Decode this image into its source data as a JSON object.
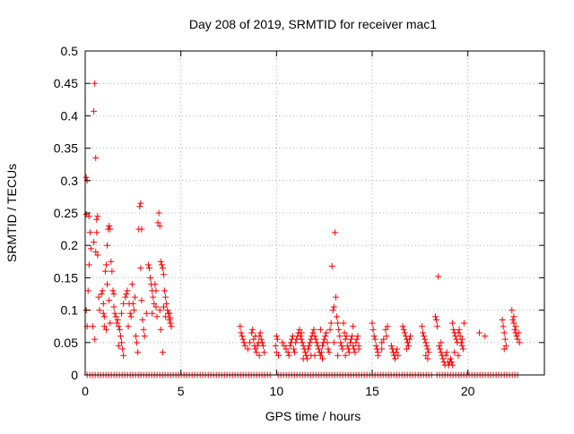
{
  "chart_data": {
    "type": "scatter",
    "title": "Day 208 of 2019, SRMTID for receiver mac1",
    "xlabel": "GPS time / hours",
    "ylabel": "SRMTID / TECUs",
    "xlim": [
      0,
      24
    ],
    "ylim": [
      0,
      0.5
    ],
    "xticks": [
      0,
      5,
      10,
      15,
      20
    ],
    "yticks": [
      0,
      0.05,
      0.1,
      0.15,
      0.2,
      0.25,
      0.3,
      0.35,
      0.4,
      0.45,
      0.5
    ],
    "ytick_labels": [
      "0",
      "0.05",
      "0.1",
      "0.15",
      "0.2",
      "0.25",
      "0.3",
      "0.35",
      "0.4",
      "0.45",
      "0.5"
    ],
    "grid": true,
    "marker": "+",
    "series_color": "#ff0000",
    "zero_baseline": {
      "x_start": 0.1,
      "x_end": 22.7,
      "value": 0,
      "gaps": [
        [
          9.8,
          10.0
        ],
        [
          18.1,
          18.3
        ]
      ]
    },
    "points": [
      [
        0.05,
        0.305
      ],
      [
        0.1,
        0.3
      ],
      [
        0.05,
        0.248
      ],
      [
        0.2,
        0.245
      ],
      [
        0.15,
        0.13
      ],
      [
        0.05,
        0.1
      ],
      [
        0.1,
        0.075
      ],
      [
        0.2,
        0.17
      ],
      [
        0.25,
        0.22
      ],
      [
        0.3,
        0.195
      ],
      [
        0.45,
        0.205
      ],
      [
        0.5,
        0.45
      ],
      [
        0.45,
        0.407
      ],
      [
        0.55,
        0.335
      ],
      [
        0.6,
        0.24
      ],
      [
        0.65,
        0.245
      ],
      [
        0.6,
        0.22
      ],
      [
        0.55,
        0.19
      ],
      [
        0.65,
        0.185
      ],
      [
        0.7,
        0.12
      ],
      [
        0.75,
        0.1
      ],
      [
        0.4,
        0.075
      ],
      [
        0.5,
        0.055
      ],
      [
        0.85,
        0.125
      ],
      [
        0.9,
        0.13
      ],
      [
        0.95,
        0.11
      ],
      [
        0.95,
        0.095
      ],
      [
        1.0,
        0.09
      ],
      [
        1.05,
        0.16
      ],
      [
        1.1,
        0.17
      ],
      [
        1.15,
        0.2
      ],
      [
        1.2,
        0.225
      ],
      [
        1.25,
        0.23
      ],
      [
        1.3,
        0.225
      ],
      [
        1.35,
        0.175
      ],
      [
        1.4,
        0.16
      ],
      [
        1.45,
        0.13
      ],
      [
        1.5,
        0.125
      ],
      [
        1.15,
        0.14
      ],
      [
        1.25,
        0.115
      ],
      [
        1.3,
        0.08
      ],
      [
        1.0,
        0.075
      ],
      [
        1.1,
        0.07
      ],
      [
        1.5,
        0.105
      ],
      [
        1.55,
        0.095
      ],
      [
        1.6,
        0.09
      ],
      [
        1.65,
        0.08
      ],
      [
        1.7,
        0.085
      ],
      [
        1.75,
        0.075
      ],
      [
        1.8,
        0.07
      ],
      [
        1.85,
        0.06
      ],
      [
        1.9,
        0.05
      ],
      [
        1.95,
        0.04
      ],
      [
        2.0,
        0.03
      ],
      [
        1.75,
        0.045
      ],
      [
        1.9,
        0.095
      ],
      [
        2.0,
        0.11
      ],
      [
        2.1,
        0.12
      ],
      [
        2.15,
        0.125
      ],
      [
        2.2,
        0.13
      ],
      [
        2.3,
        0.11
      ],
      [
        2.35,
        0.095
      ],
      [
        2.4,
        0.09
      ],
      [
        2.25,
        0.075
      ],
      [
        2.45,
        0.14
      ],
      [
        2.5,
        0.11
      ],
      [
        2.55,
        0.1
      ],
      [
        2.6,
        0.12
      ],
      [
        2.65,
        0.06
      ],
      [
        2.7,
        0.05
      ],
      [
        2.75,
        0.035
      ],
      [
        2.8,
        0.225
      ],
      [
        2.85,
        0.26
      ],
      [
        2.9,
        0.265
      ],
      [
        2.95,
        0.225
      ],
      [
        2.9,
        0.165
      ],
      [
        2.95,
        0.115
      ],
      [
        3.0,
        0.085
      ],
      [
        3.05,
        0.07
      ],
      [
        3.1,
        0.06
      ],
      [
        3.2,
        0.095
      ],
      [
        3.3,
        0.17
      ],
      [
        3.35,
        0.165
      ],
      [
        3.4,
        0.15
      ],
      [
        3.45,
        0.14
      ],
      [
        3.5,
        0.13
      ],
      [
        3.55,
        0.12
      ],
      [
        3.6,
        0.11
      ],
      [
        3.65,
        0.14
      ],
      [
        3.7,
        0.105
      ],
      [
        3.75,
        0.09
      ],
      [
        3.8,
        0.235
      ],
      [
        3.85,
        0.25
      ],
      [
        3.9,
        0.23
      ],
      [
        3.95,
        0.175
      ],
      [
        4.0,
        0.17
      ],
      [
        4.05,
        0.165
      ],
      [
        4.1,
        0.155
      ],
      [
        4.15,
        0.13
      ],
      [
        4.2,
        0.12
      ],
      [
        4.25,
        0.11
      ],
      [
        4.3,
        0.1
      ],
      [
        4.35,
        0.095
      ],
      [
        4.4,
        0.085
      ],
      [
        4.45,
        0.08
      ],
      [
        4.5,
        0.075
      ],
      [
        3.95,
        0.07
      ],
      [
        4.05,
        0.035
      ],
      [
        3.9,
        0.1
      ],
      [
        4.2,
        0.09
      ],
      [
        4.4,
        0.095
      ],
      [
        4.45,
        0.088
      ],
      [
        3.5,
        0.095
      ],
      [
        3.7,
        0.13
      ],
      [
        4.1,
        0.105
      ],
      [
        8.1,
        0.075
      ],
      [
        8.15,
        0.065
      ],
      [
        8.2,
        0.06
      ],
      [
        8.25,
        0.055
      ],
      [
        8.3,
        0.05
      ],
      [
        8.35,
        0.045
      ],
      [
        8.5,
        0.04
      ],
      [
        8.6,
        0.05
      ],
      [
        8.7,
        0.065
      ],
      [
        8.75,
        0.07
      ],
      [
        8.8,
        0.055
      ],
      [
        8.85,
        0.045
      ],
      [
        8.9,
        0.04
      ],
      [
        8.95,
        0.035
      ],
      [
        9.0,
        0.045
      ],
      [
        9.05,
        0.05
      ],
      [
        9.1,
        0.06
      ],
      [
        9.15,
        0.065
      ],
      [
        9.2,
        0.055
      ],
      [
        9.25,
        0.05
      ],
      [
        9.3,
        0.045
      ],
      [
        9.35,
        0.035
      ],
      [
        8.9,
        0.06
      ],
      [
        9.1,
        0.03
      ],
      [
        10.0,
        0.06
      ],
      [
        10.05,
        0.055
      ],
      [
        9.95,
        0.045
      ],
      [
        10.0,
        0.035
      ],
      [
        10.1,
        0.03
      ],
      [
        10.3,
        0.05
      ],
      [
        10.4,
        0.045
      ],
      [
        10.5,
        0.04
      ],
      [
        10.6,
        0.035
      ],
      [
        10.65,
        0.03
      ],
      [
        10.7,
        0.045
      ],
      [
        10.75,
        0.05
      ],
      [
        10.8,
        0.055
      ],
      [
        10.85,
        0.06
      ],
      [
        10.9,
        0.04
      ],
      [
        10.95,
        0.035
      ],
      [
        11.0,
        0.05
      ],
      [
        11.05,
        0.055
      ],
      [
        11.1,
        0.06
      ],
      [
        11.15,
        0.065
      ],
      [
        11.2,
        0.07
      ],
      [
        11.25,
        0.06
      ],
      [
        11.3,
        0.055
      ],
      [
        11.35,
        0.05
      ],
      [
        11.4,
        0.045
      ],
      [
        11.45,
        0.04
      ],
      [
        11.5,
        0.035
      ],
      [
        11.55,
        0.03
      ],
      [
        11.6,
        0.025
      ],
      [
        11.65,
        0.04
      ],
      [
        11.7,
        0.045
      ],
      [
        11.75,
        0.05
      ],
      [
        11.8,
        0.055
      ],
      [
        11.85,
        0.06
      ],
      [
        11.9,
        0.065
      ],
      [
        11.95,
        0.07
      ],
      [
        12.0,
        0.06
      ],
      [
        12.05,
        0.055
      ],
      [
        12.1,
        0.05
      ],
      [
        12.15,
        0.045
      ],
      [
        12.2,
        0.04
      ],
      [
        12.25,
        0.035
      ],
      [
        12.3,
        0.03
      ],
      [
        12.35,
        0.035
      ],
      [
        12.4,
        0.045
      ],
      [
        12.45,
        0.05
      ],
      [
        12.5,
        0.055
      ],
      [
        12.55,
        0.06
      ],
      [
        12.6,
        0.065
      ],
      [
        12.65,
        0.05
      ],
      [
        12.7,
        0.04
      ],
      [
        12.75,
        0.035
      ],
      [
        12.8,
        0.07
      ],
      [
        12.85,
        0.08
      ],
      [
        12.9,
        0.168
      ],
      [
        12.95,
        0.1
      ],
      [
        13.0,
        0.105
      ],
      [
        13.05,
        0.22
      ],
      [
        13.1,
        0.12
      ],
      [
        13.15,
        0.09
      ],
      [
        13.2,
        0.08
      ],
      [
        13.25,
        0.07
      ],
      [
        13.3,
        0.06
      ],
      [
        13.35,
        0.05
      ],
      [
        13.4,
        0.045
      ],
      [
        13.45,
        0.04
      ],
      [
        13.5,
        0.08
      ],
      [
        13.55,
        0.065
      ],
      [
        13.6,
        0.055
      ],
      [
        13.65,
        0.06
      ],
      [
        13.7,
        0.045
      ],
      [
        13.75,
        0.04
      ],
      [
        13.8,
        0.035
      ],
      [
        13.85,
        0.05
      ],
      [
        13.9,
        0.055
      ],
      [
        13.95,
        0.06
      ],
      [
        14.0,
        0.045
      ],
      [
        14.05,
        0.04
      ],
      [
        14.1,
        0.035
      ],
      [
        14.15,
        0.05
      ],
      [
        14.2,
        0.055
      ],
      [
        14.25,
        0.06
      ],
      [
        14.3,
        0.045
      ],
      [
        11.4,
        0.025
      ],
      [
        11.8,
        0.03
      ],
      [
        12.0,
        0.03
      ],
      [
        12.4,
        0.025
      ],
      [
        13.0,
        0.05
      ],
      [
        13.2,
        0.03
      ],
      [
        13.6,
        0.03
      ],
      [
        14.0,
        0.075
      ],
      [
        14.3,
        0.04
      ],
      [
        11.3,
        0.065
      ],
      [
        12.3,
        0.07
      ],
      [
        15.0,
        0.08
      ],
      [
        15.05,
        0.07
      ],
      [
        15.1,
        0.06
      ],
      [
        15.15,
        0.055
      ],
      [
        15.2,
        0.045
      ],
      [
        15.25,
        0.04
      ],
      [
        15.3,
        0.035
      ],
      [
        15.5,
        0.05
      ],
      [
        15.6,
        0.055
      ],
      [
        15.7,
        0.07
      ],
      [
        15.75,
        0.06
      ],
      [
        15.8,
        0.075
      ],
      [
        15.5,
        0.04
      ],
      [
        15.3,
        0.03
      ],
      [
        16.0,
        0.045
      ],
      [
        16.05,
        0.04
      ],
      [
        16.1,
        0.035
      ],
      [
        16.15,
        0.03
      ],
      [
        16.2,
        0.025
      ],
      [
        16.25,
        0.035
      ],
      [
        16.3,
        0.04
      ],
      [
        16.35,
        0.03
      ],
      [
        16.6,
        0.075
      ],
      [
        16.65,
        0.07
      ],
      [
        16.7,
        0.065
      ],
      [
        16.75,
        0.06
      ],
      [
        16.8,
        0.055
      ],
      [
        16.85,
        0.05
      ],
      [
        16.9,
        0.045
      ],
      [
        16.95,
        0.055
      ],
      [
        17.0,
        0.06
      ],
      [
        16.8,
        0.04
      ],
      [
        17.6,
        0.075
      ],
      [
        17.65,
        0.065
      ],
      [
        17.7,
        0.06
      ],
      [
        17.75,
        0.055
      ],
      [
        17.8,
        0.05
      ],
      [
        17.85,
        0.045
      ],
      [
        17.9,
        0.04
      ],
      [
        17.95,
        0.035
      ],
      [
        17.8,
        0.03
      ],
      [
        17.9,
        0.025
      ],
      [
        18.3,
        0.09
      ],
      [
        18.35,
        0.085
      ],
      [
        18.4,
        0.075
      ],
      [
        18.45,
        0.152
      ],
      [
        18.5,
        0.045
      ],
      [
        18.55,
        0.04
      ],
      [
        18.6,
        0.035
      ],
      [
        18.65,
        0.03
      ],
      [
        18.7,
        0.025
      ],
      [
        18.75,
        0.02
      ],
      [
        18.8,
        0.015
      ],
      [
        18.85,
        0.03
      ],
      [
        18.9,
        0.035
      ],
      [
        18.95,
        0.02
      ],
      [
        19.0,
        0.015
      ],
      [
        19.05,
        0.02
      ],
      [
        19.1,
        0.025
      ],
      [
        19.15,
        0.02
      ],
      [
        19.2,
        0.015
      ],
      [
        18.6,
        0.05
      ],
      [
        19.2,
        0.08
      ],
      [
        19.25,
        0.07
      ],
      [
        19.3,
        0.065
      ],
      [
        19.35,
        0.06
      ],
      [
        19.4,
        0.055
      ],
      [
        19.45,
        0.05
      ],
      [
        19.5,
        0.065
      ],
      [
        19.55,
        0.07
      ],
      [
        19.6,
        0.06
      ],
      [
        19.65,
        0.05
      ],
      [
        19.7,
        0.045
      ],
      [
        19.75,
        0.04
      ],
      [
        19.8,
        0.08
      ],
      [
        19.3,
        0.035
      ],
      [
        19.5,
        0.03
      ],
      [
        19.7,
        0.055
      ],
      [
        20.6,
        0.065
      ],
      [
        20.9,
        0.06
      ],
      [
        21.8,
        0.085
      ],
      [
        21.85,
        0.075
      ],
      [
        21.9,
        0.065
      ],
      [
        21.95,
        0.055
      ],
      [
        22.0,
        0.045
      ],
      [
        21.9,
        0.04
      ],
      [
        22.3,
        0.1
      ],
      [
        22.35,
        0.085
      ],
      [
        22.4,
        0.08
      ],
      [
        22.45,
        0.07
      ],
      [
        22.5,
        0.065
      ],
      [
        22.55,
        0.06
      ],
      [
        22.6,
        0.055
      ],
      [
        22.65,
        0.065
      ],
      [
        22.7,
        0.05
      ],
      [
        22.4,
        0.09
      ],
      [
        22.5,
        0.075
      ]
    ]
  }
}
